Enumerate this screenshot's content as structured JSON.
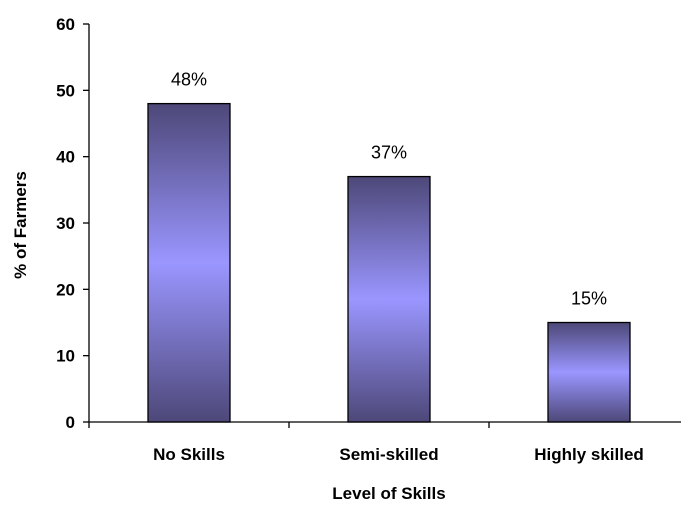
{
  "chart_data": {
    "type": "bar",
    "title": "",
    "xlabel": "Level of Skills",
    "ylabel": "% of Farmers",
    "categories": [
      "No Skills",
      "Semi-skilled",
      "Highly skilled"
    ],
    "values": [
      48,
      37,
      15
    ],
    "data_labels": [
      "48%",
      "37%",
      "15%"
    ],
    "ylim": [
      0,
      60
    ],
    "yticks": [
      0,
      10,
      20,
      30,
      40,
      50,
      60
    ],
    "grid": false,
    "legend": "none",
    "bar_colors": {
      "edge": "#4d4878",
      "center": "#9a96ff",
      "outline": "#000000"
    }
  }
}
